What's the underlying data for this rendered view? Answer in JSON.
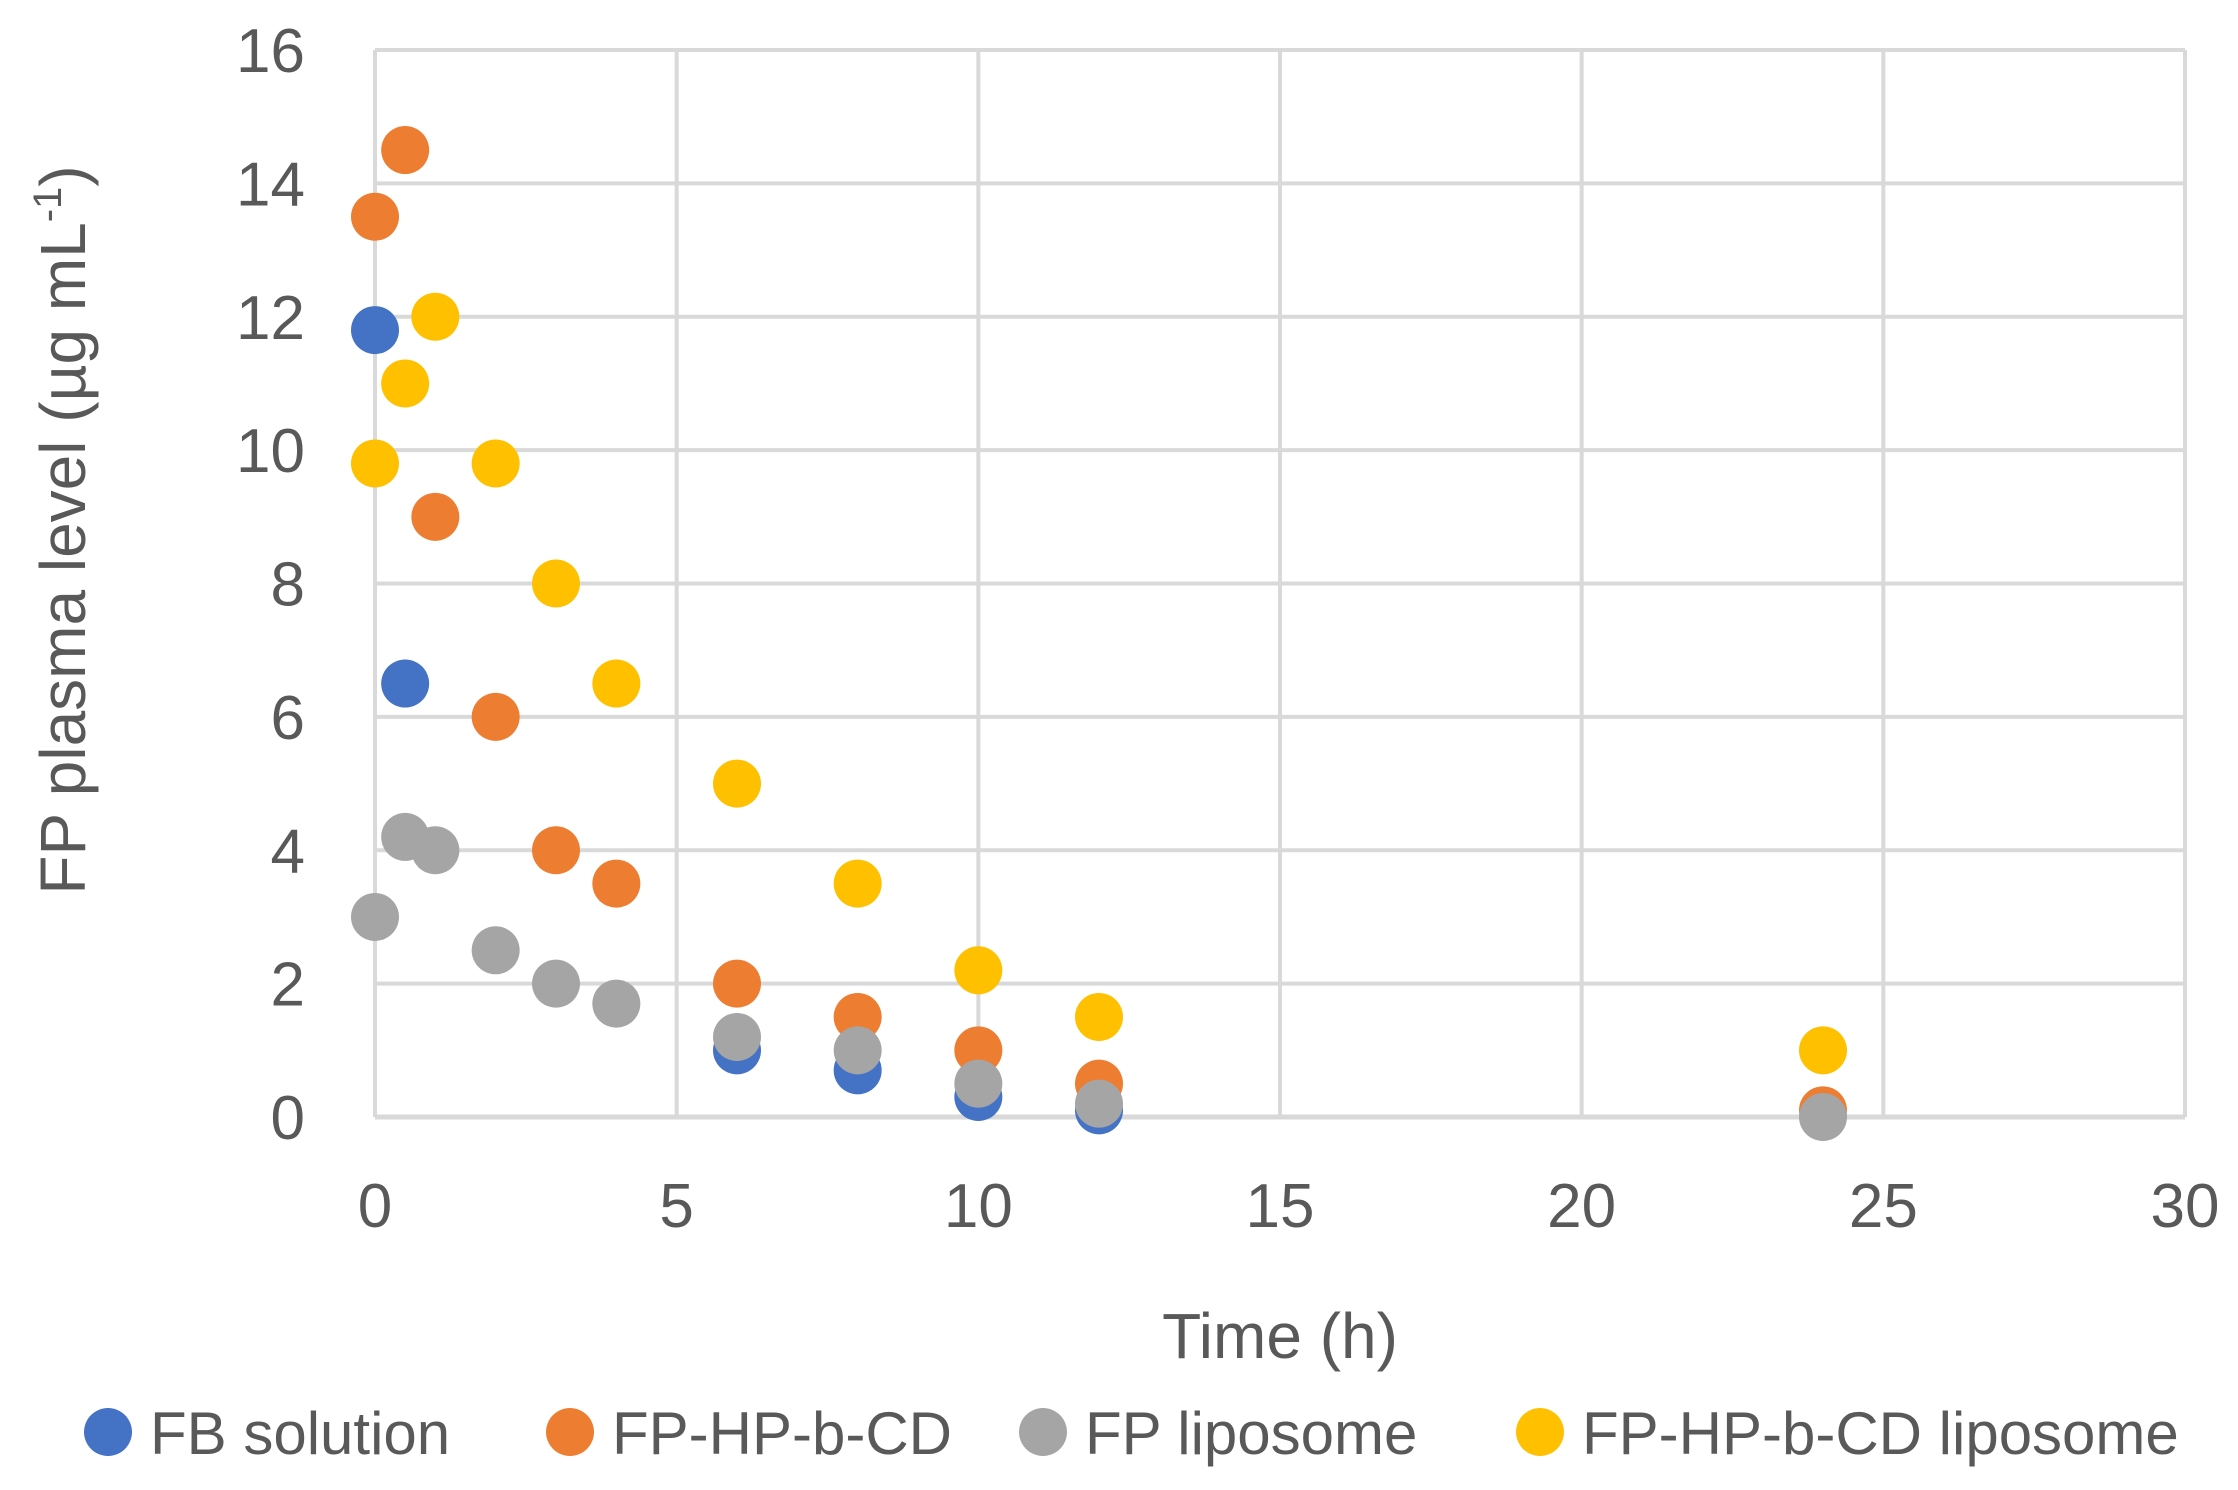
{
  "chart_data": {
    "type": "scatter",
    "title": "",
    "xlabel": "Time (h)",
    "ylabel": {
      "main": "FP plasma level (µg mL",
      "sup": "-1",
      "close": ")"
    },
    "xlim": [
      0,
      30
    ],
    "ylim": [
      0,
      16
    ],
    "xticks": [
      0,
      5,
      10,
      15,
      20,
      25,
      30
    ],
    "yticks": [
      0,
      2,
      4,
      6,
      8,
      10,
      12,
      14,
      16
    ],
    "grid": true,
    "legend_position": "bottom",
    "series": [
      {
        "name": "FB solution",
        "color": "#4472C4",
        "points": [
          [
            0,
            11.8
          ],
          [
            0.5,
            6.5
          ],
          [
            6,
            1.0
          ],
          [
            8,
            0.7
          ],
          [
            10,
            0.3
          ],
          [
            12,
            0.1
          ]
        ]
      },
      {
        "name": "FP-HP-b-CD",
        "color": "#ED7D31",
        "points": [
          [
            0,
            13.5
          ],
          [
            0.5,
            14.5
          ],
          [
            1,
            9.0
          ],
          [
            2,
            6.0
          ],
          [
            3,
            4.0
          ],
          [
            4,
            3.5
          ],
          [
            6,
            2.0
          ],
          [
            8,
            1.5
          ],
          [
            10,
            1.0
          ],
          [
            12,
            0.5
          ],
          [
            24,
            0.1
          ]
        ]
      },
      {
        "name": "FP liposome",
        "color": "#A5A5A5",
        "points": [
          [
            0,
            3.0
          ],
          [
            0.5,
            4.2
          ],
          [
            1,
            4.0
          ],
          [
            2,
            2.5
          ],
          [
            3,
            2.0
          ],
          [
            4,
            1.7
          ],
          [
            6,
            1.2
          ],
          [
            8,
            1.0
          ],
          [
            10,
            0.5
          ],
          [
            12,
            0.2
          ],
          [
            24,
            0.0
          ]
        ]
      },
      {
        "name": "FP-HP-b-CD liposome",
        "color": "#FFC000",
        "points": [
          [
            0,
            9.8
          ],
          [
            0.5,
            11.0
          ],
          [
            1,
            12.0
          ],
          [
            2,
            9.8
          ],
          [
            3,
            8.0
          ],
          [
            4,
            6.5
          ],
          [
            6,
            5.0
          ],
          [
            8,
            3.5
          ],
          [
            10,
            2.2
          ],
          [
            12,
            1.5
          ],
          [
            24,
            1.0
          ]
        ]
      }
    ]
  },
  "colors": {
    "grid": "#D9D9D9",
    "axis": "#D9D9D9",
    "text": "#595959"
  }
}
